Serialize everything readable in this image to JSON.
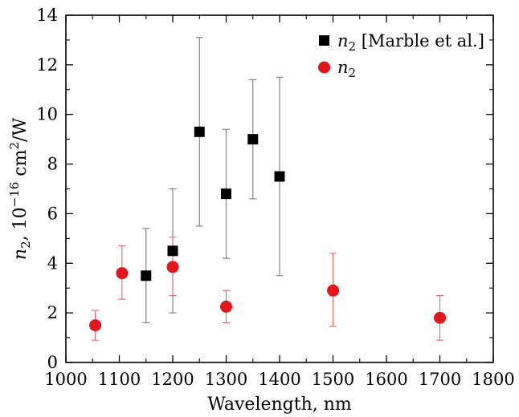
{
  "chart_data": {
    "type": "scatter",
    "xlabel": "Wavelength, nm",
    "ylabel": {
      "symbol": "n",
      "subscript": "2",
      "unit_prefix": ", 10",
      "exponent": "−16",
      "unit_mid": " cm",
      "unit_exp": "2",
      "unit_suffix": "/W"
    },
    "xlim": [
      1000,
      1800
    ],
    "ylim": [
      0,
      14
    ],
    "xticks": [
      1000,
      1100,
      1200,
      1300,
      1400,
      1500,
      1600,
      1700,
      1800
    ],
    "yticks": [
      0,
      2,
      4,
      6,
      8,
      10,
      12,
      14
    ],
    "grid": false,
    "legend_position": "top-right",
    "series": [
      {
        "legend": {
          "symbol": "n",
          "subscript": "2",
          "suffix": " [Marble et al.]"
        },
        "marker": "square",
        "color": "#000000",
        "errorbar_color": "#7a7a7a",
        "points": [
          {
            "x": 1150,
            "y": 3.5,
            "err_low": 1.6,
            "err_high": 5.4
          },
          {
            "x": 1200,
            "y": 4.5,
            "err_low": 2.0,
            "err_high": 7.0
          },
          {
            "x": 1250,
            "y": 9.3,
            "err_low": 5.5,
            "err_high": 13.1
          },
          {
            "x": 1300,
            "y": 6.8,
            "err_low": 4.2,
            "err_high": 9.4
          },
          {
            "x": 1350,
            "y": 9.0,
            "err_low": 6.6,
            "err_high": 11.4
          },
          {
            "x": 1400,
            "y": 7.5,
            "err_low": 3.5,
            "err_high": 11.5
          }
        ]
      },
      {
        "legend": {
          "symbol": "n",
          "subscript": "2",
          "suffix": ""
        },
        "marker": "circle",
        "color": "#e3171b",
        "errorbar_color": "#e36a6a",
        "points": [
          {
            "x": 1055,
            "y": 1.5,
            "err_low": 0.9,
            "err_high": 2.1
          },
          {
            "x": 1105,
            "y": 3.6,
            "err_low": 2.55,
            "err_high": 4.7
          },
          {
            "x": 1200,
            "y": 3.85,
            "err_low": 2.7,
            "err_high": 5.05
          },
          {
            "x": 1300,
            "y": 2.25,
            "err_low": 1.6,
            "err_high": 2.9
          },
          {
            "x": 1500,
            "y": 2.9,
            "err_low": 1.45,
            "err_high": 4.4
          },
          {
            "x": 1700,
            "y": 1.8,
            "err_low": 0.9,
            "err_high": 2.7
          }
        ]
      }
    ]
  }
}
